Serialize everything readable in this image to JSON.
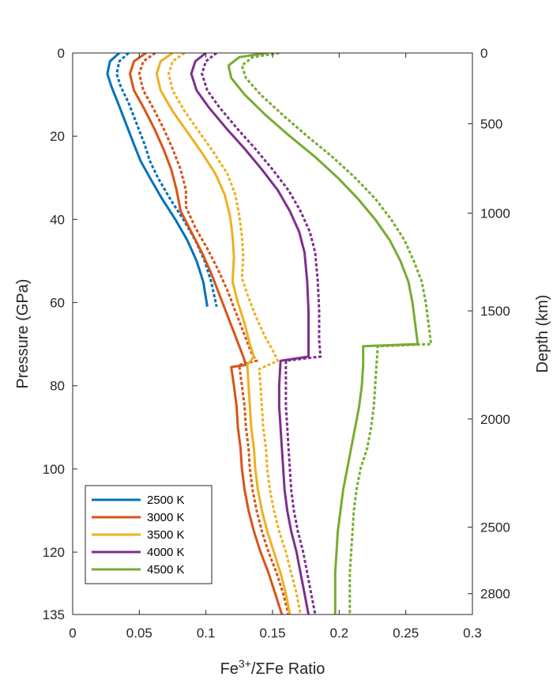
{
  "chart_data": {
    "type": "line",
    "xlabel_parts": {
      "base": "Fe",
      "sup": "3+",
      "rest": "/ΣFe Ratio"
    },
    "ylabel": "Pressure (GPa)",
    "y2label": "Depth (km)",
    "xlim": [
      0,
      0.3
    ],
    "ylim": [
      0,
      135
    ],
    "y_reversed": true,
    "x_ticks": [
      "0",
      "0.05",
      "0.1",
      "0.15",
      "0.2",
      "0.25",
      "0.3"
    ],
    "y_ticks": [
      "0",
      "20",
      "40",
      "60",
      "80",
      "100",
      "120",
      "135"
    ],
    "y_tick_values": [
      0,
      20,
      40,
      60,
      80,
      100,
      120,
      135
    ],
    "y2_ticks": [
      {
        "label": "0",
        "pressure": 0
      },
      {
        "label": "500",
        "pressure": 17
      },
      {
        "label": "1000",
        "pressure": 38.5
      },
      {
        "label": "1500",
        "pressure": 62
      },
      {
        "label": "2000",
        "pressure": 88
      },
      {
        "label": "2500",
        "pressure": 114
      },
      {
        "label": "2800",
        "pressure": 130
      }
    ],
    "legend_position": "bottom-left",
    "line_styles_note": "solid and dotted variants for each temperature",
    "series": [
      {
        "name": "2500 K",
        "color": "#0072BD",
        "solid": [
          [
            0.035,
            0
          ],
          [
            0.028,
            2
          ],
          [
            0.026,
            5
          ],
          [
            0.029,
            8
          ],
          [
            0.034,
            12
          ],
          [
            0.04,
            17
          ],
          [
            0.046,
            22
          ],
          [
            0.051,
            26
          ],
          [
            0.058,
            30
          ],
          [
            0.067,
            35
          ],
          [
            0.077,
            40
          ],
          [
            0.086,
            45
          ],
          [
            0.093,
            50
          ],
          [
            0.098,
            55
          ],
          [
            0.101,
            61
          ]
        ],
        "dotted": [
          [
            0.042,
            0
          ],
          [
            0.035,
            2
          ],
          [
            0.033,
            5
          ],
          [
            0.036,
            8
          ],
          [
            0.042,
            12
          ],
          [
            0.048,
            17
          ],
          [
            0.054,
            22
          ],
          [
            0.058,
            26
          ],
          [
            0.064,
            30
          ],
          [
            0.073,
            35
          ],
          [
            0.083,
            40
          ],
          [
            0.092,
            45
          ],
          [
            0.099,
            50
          ],
          [
            0.104,
            55
          ],
          [
            0.108,
            61
          ]
        ]
      },
      {
        "name": "3000 K",
        "color": "#D95319",
        "solid": [
          [
            0.055,
            0
          ],
          [
            0.046,
            2
          ],
          [
            0.043,
            5
          ],
          [
            0.046,
            9
          ],
          [
            0.053,
            13
          ],
          [
            0.061,
            18
          ],
          [
            0.068,
            23
          ],
          [
            0.074,
            28
          ],
          [
            0.078,
            33
          ],
          [
            0.081,
            38
          ],
          [
            0.089,
            43
          ],
          [
            0.097,
            48
          ],
          [
            0.104,
            53
          ],
          [
            0.11,
            58
          ],
          [
            0.116,
            63
          ],
          [
            0.122,
            68
          ],
          [
            0.128,
            73
          ],
          [
            0.13,
            75
          ],
          [
            0.119,
            75.5
          ],
          [
            0.121,
            80
          ],
          [
            0.123,
            85
          ],
          [
            0.124,
            90
          ],
          [
            0.126,
            95
          ],
          [
            0.127,
            100
          ],
          [
            0.129,
            105
          ],
          [
            0.132,
            110
          ],
          [
            0.136,
            115
          ],
          [
            0.141,
            120
          ],
          [
            0.147,
            125
          ],
          [
            0.152,
            130
          ],
          [
            0.157,
            135
          ]
        ],
        "dotted": [
          [
            0.062,
            0
          ],
          [
            0.053,
            2
          ],
          [
            0.05,
            5
          ],
          [
            0.053,
            9
          ],
          [
            0.06,
            13
          ],
          [
            0.068,
            18
          ],
          [
            0.075,
            23
          ],
          [
            0.081,
            28
          ],
          [
            0.085,
            33
          ],
          [
            0.085,
            37
          ],
          [
            0.092,
            42
          ],
          [
            0.101,
            47
          ],
          [
            0.109,
            52
          ],
          [
            0.116,
            57
          ],
          [
            0.122,
            62
          ],
          [
            0.128,
            67
          ],
          [
            0.134,
            72
          ],
          [
            0.138,
            74
          ],
          [
            0.125,
            75
          ],
          [
            0.127,
            80
          ],
          [
            0.129,
            85
          ],
          [
            0.13,
            90
          ],
          [
            0.132,
            95
          ],
          [
            0.133,
            100
          ],
          [
            0.135,
            105
          ],
          [
            0.138,
            110
          ],
          [
            0.142,
            115
          ],
          [
            0.147,
            120
          ],
          [
            0.153,
            125
          ],
          [
            0.158,
            130
          ],
          [
            0.162,
            135
          ]
        ]
      },
      {
        "name": "3500 K",
        "color": "#EDB120",
        "solid": [
          [
            0.075,
            0
          ],
          [
            0.066,
            2
          ],
          [
            0.063,
            5
          ],
          [
            0.066,
            9
          ],
          [
            0.075,
            14
          ],
          [
            0.086,
            19
          ],
          [
            0.097,
            24
          ],
          [
            0.107,
            29
          ],
          [
            0.114,
            34
          ],
          [
            0.118,
            39
          ],
          [
            0.12,
            44
          ],
          [
            0.121,
            49
          ],
          [
            0.12,
            55
          ],
          [
            0.124,
            60
          ],
          [
            0.129,
            65
          ],
          [
            0.133,
            70
          ],
          [
            0.136,
            73
          ],
          [
            0.131,
            75
          ],
          [
            0.132,
            80
          ],
          [
            0.133,
            85
          ],
          [
            0.134,
            90
          ],
          [
            0.136,
            95
          ],
          [
            0.137,
            100
          ],
          [
            0.139,
            105
          ],
          [
            0.142,
            110
          ],
          [
            0.146,
            115
          ],
          [
            0.151,
            120
          ],
          [
            0.156,
            125
          ],
          [
            0.16,
            130
          ],
          [
            0.163,
            135
          ]
        ],
        "dotted": [
          [
            0.084,
            0
          ],
          [
            0.075,
            2
          ],
          [
            0.072,
            5
          ],
          [
            0.075,
            9
          ],
          [
            0.084,
            14
          ],
          [
            0.095,
            19
          ],
          [
            0.106,
            24
          ],
          [
            0.116,
            29
          ],
          [
            0.122,
            34
          ],
          [
            0.125,
            39
          ],
          [
            0.127,
            44
          ],
          [
            0.128,
            49
          ],
          [
            0.127,
            54
          ],
          [
            0.131,
            58
          ],
          [
            0.137,
            63
          ],
          [
            0.144,
            68
          ],
          [
            0.151,
            72
          ],
          [
            0.154,
            74
          ],
          [
            0.14,
            76
          ],
          [
            0.141,
            80
          ],
          [
            0.142,
            85
          ],
          [
            0.143,
            90
          ],
          [
            0.145,
            95
          ],
          [
            0.146,
            100
          ],
          [
            0.148,
            105
          ],
          [
            0.151,
            110
          ],
          [
            0.155,
            115
          ],
          [
            0.16,
            120
          ],
          [
            0.164,
            125
          ],
          [
            0.168,
            130
          ],
          [
            0.171,
            135
          ]
        ]
      },
      {
        "name": "4000 K",
        "color": "#7E2F8E",
        "solid": [
          [
            0.1,
            0
          ],
          [
            0.092,
            2
          ],
          [
            0.089,
            5
          ],
          [
            0.093,
            9
          ],
          [
            0.102,
            13
          ],
          [
            0.115,
            18
          ],
          [
            0.129,
            23
          ],
          [
            0.142,
            28
          ],
          [
            0.154,
            33
          ],
          [
            0.163,
            38
          ],
          [
            0.17,
            43
          ],
          [
            0.174,
            48
          ],
          [
            0.176,
            55
          ],
          [
            0.177,
            62
          ],
          [
            0.177,
            69
          ],
          [
            0.177,
            73
          ],
          [
            0.156,
            74
          ],
          [
            0.155,
            80
          ],
          [
            0.155,
            85
          ],
          [
            0.156,
            90
          ],
          [
            0.157,
            95
          ],
          [
            0.158,
            100
          ],
          [
            0.159,
            105
          ],
          [
            0.161,
            110
          ],
          [
            0.164,
            115
          ],
          [
            0.168,
            120
          ],
          [
            0.171,
            125
          ],
          [
            0.174,
            130
          ],
          [
            0.177,
            135
          ]
        ],
        "dotted": [
          [
            0.108,
            0
          ],
          [
            0.1,
            2
          ],
          [
            0.097,
            5
          ],
          [
            0.101,
            9
          ],
          [
            0.11,
            13
          ],
          [
            0.123,
            18
          ],
          [
            0.137,
            23
          ],
          [
            0.15,
            28
          ],
          [
            0.162,
            33
          ],
          [
            0.171,
            38
          ],
          [
            0.178,
            43
          ],
          [
            0.182,
            48
          ],
          [
            0.184,
            55
          ],
          [
            0.185,
            62
          ],
          [
            0.185,
            69
          ],
          [
            0.186,
            73
          ],
          [
            0.16,
            74
          ],
          [
            0.16,
            80
          ],
          [
            0.16,
            85
          ],
          [
            0.161,
            90
          ],
          [
            0.162,
            95
          ],
          [
            0.163,
            100
          ],
          [
            0.164,
            105
          ],
          [
            0.166,
            110
          ],
          [
            0.169,
            115
          ],
          [
            0.173,
            120
          ],
          [
            0.176,
            125
          ],
          [
            0.179,
            130
          ],
          [
            0.182,
            135
          ]
        ]
      },
      {
        "name": "4500 K",
        "color": "#77AC30",
        "solid": [
          [
            0.145,
            0
          ],
          [
            0.125,
            1
          ],
          [
            0.117,
            3
          ],
          [
            0.119,
            6
          ],
          [
            0.129,
            10
          ],
          [
            0.145,
            15
          ],
          [
            0.163,
            20
          ],
          [
            0.182,
            25
          ],
          [
            0.199,
            30
          ],
          [
            0.214,
            35
          ],
          [
            0.227,
            40
          ],
          [
            0.238,
            45
          ],
          [
            0.246,
            50
          ],
          [
            0.252,
            55
          ],
          [
            0.255,
            60
          ],
          [
            0.257,
            65
          ],
          [
            0.259,
            70
          ],
          [
            0.218,
            70.5
          ],
          [
            0.218,
            75
          ],
          [
            0.217,
            80
          ],
          [
            0.215,
            85
          ],
          [
            0.212,
            90
          ],
          [
            0.209,
            95
          ],
          [
            0.206,
            100
          ],
          [
            0.203,
            105
          ],
          [
            0.201,
            110
          ],
          [
            0.199,
            115
          ],
          [
            0.198,
            120
          ],
          [
            0.197,
            125
          ],
          [
            0.197,
            130
          ],
          [
            0.197,
            135
          ]
        ],
        "dotted": [
          [
            0.155,
            0
          ],
          [
            0.135,
            1
          ],
          [
            0.127,
            3
          ],
          [
            0.13,
            6
          ],
          [
            0.141,
            10
          ],
          [
            0.158,
            15
          ],
          [
            0.176,
            20
          ],
          [
            0.195,
            25
          ],
          [
            0.212,
            30
          ],
          [
            0.227,
            35
          ],
          [
            0.239,
            40
          ],
          [
            0.249,
            45
          ],
          [
            0.256,
            50
          ],
          [
            0.262,
            55
          ],
          [
            0.265,
            60
          ],
          [
            0.267,
            65
          ],
          [
            0.269,
            70
          ],
          [
            0.229,
            70.5
          ],
          [
            0.228,
            75
          ],
          [
            0.227,
            80
          ],
          [
            0.226,
            85
          ],
          [
            0.224,
            90
          ],
          [
            0.221,
            95
          ],
          [
            0.216,
            100
          ],
          [
            0.213,
            105
          ],
          [
            0.211,
            110
          ],
          [
            0.21,
            115
          ],
          [
            0.209,
            120
          ],
          [
            0.208,
            125
          ],
          [
            0.208,
            130
          ],
          [
            0.208,
            135
          ]
        ]
      }
    ]
  }
}
